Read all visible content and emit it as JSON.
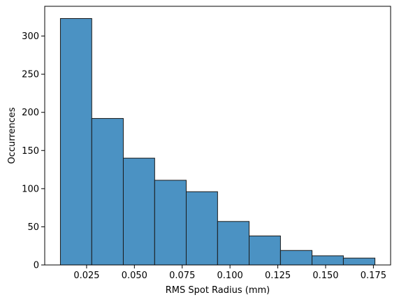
{
  "chart_data": {
    "type": "bar",
    "title": "",
    "xlabel": "RMS Spot Radius (mm)",
    "ylabel": "Occurrences",
    "bin_edges": [
      0.0113,
      0.0277,
      0.0442,
      0.0606,
      0.0771,
      0.0935,
      0.11,
      0.1264,
      0.1429,
      0.1593,
      0.1758
    ],
    "values": [
      323,
      192,
      140,
      111,
      96,
      57,
      38,
      19,
      12,
      9
    ],
    "xlim": [
      0.0031,
      0.184
    ],
    "ylim": [
      0,
      339
    ],
    "x_ticks": [
      0.025,
      0.05,
      0.075,
      0.1,
      0.125,
      0.15,
      0.175
    ],
    "x_tick_labels": [
      "0.025",
      "0.050",
      "0.075",
      "0.100",
      "0.125",
      "0.150",
      "0.175"
    ],
    "y_ticks": [
      0,
      50,
      100,
      150,
      200,
      250,
      300
    ],
    "y_tick_labels": [
      "0",
      "50",
      "100",
      "150",
      "200",
      "250",
      "300"
    ],
    "bar_color": "#4b92c3",
    "edge_color": "#1a1a1a",
    "grid": false,
    "legend": "none"
  }
}
